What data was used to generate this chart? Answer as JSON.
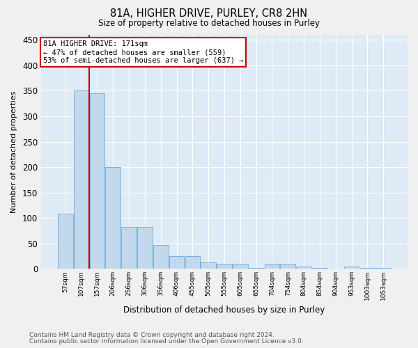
{
  "title": "81A, HIGHER DRIVE, PURLEY, CR8 2HN",
  "subtitle": "Size of property relative to detached houses in Purley",
  "xlabel": "Distribution of detached houses by size in Purley",
  "ylabel": "Number of detached properties",
  "bar_color": "#c2d9ed",
  "bar_edge_color": "#7aafe0",
  "background_color": "#deeaf5",
  "grid_color": "#ffffff",
  "fig_color": "#f0f0f0",
  "vline_color": "#cc0000",
  "vline_x": 1.5,
  "annotation_line1": "81A HIGHER DRIVE: 171sqm",
  "annotation_line2": "← 47% of detached houses are smaller (559)",
  "annotation_line3": "53% of semi-detached houses are larger (637) →",
  "annotation_box_color": "#ffffff",
  "annotation_box_edge": "#cc0000",
  "footnote1": "Contains HM Land Registry data © Crown copyright and database right 2024.",
  "footnote2": "Contains public sector information licensed under the Open Government Licence v3.0.",
  "categories": [
    "57sqm",
    "107sqm",
    "157sqm",
    "206sqm",
    "256sqm",
    "306sqm",
    "356sqm",
    "406sqm",
    "455sqm",
    "505sqm",
    "555sqm",
    "605sqm",
    "655sqm",
    "704sqm",
    "754sqm",
    "804sqm",
    "854sqm",
    "904sqm",
    "953sqm",
    "1003sqm",
    "1053sqm"
  ],
  "values": [
    108,
    350,
    345,
    200,
    83,
    83,
    47,
    25,
    25,
    12,
    10,
    10,
    2,
    10,
    10,
    5,
    2,
    0,
    5,
    2,
    2
  ],
  "ylim": [
    0,
    460
  ],
  "yticks": [
    0,
    50,
    100,
    150,
    200,
    250,
    300,
    350,
    400,
    450
  ]
}
